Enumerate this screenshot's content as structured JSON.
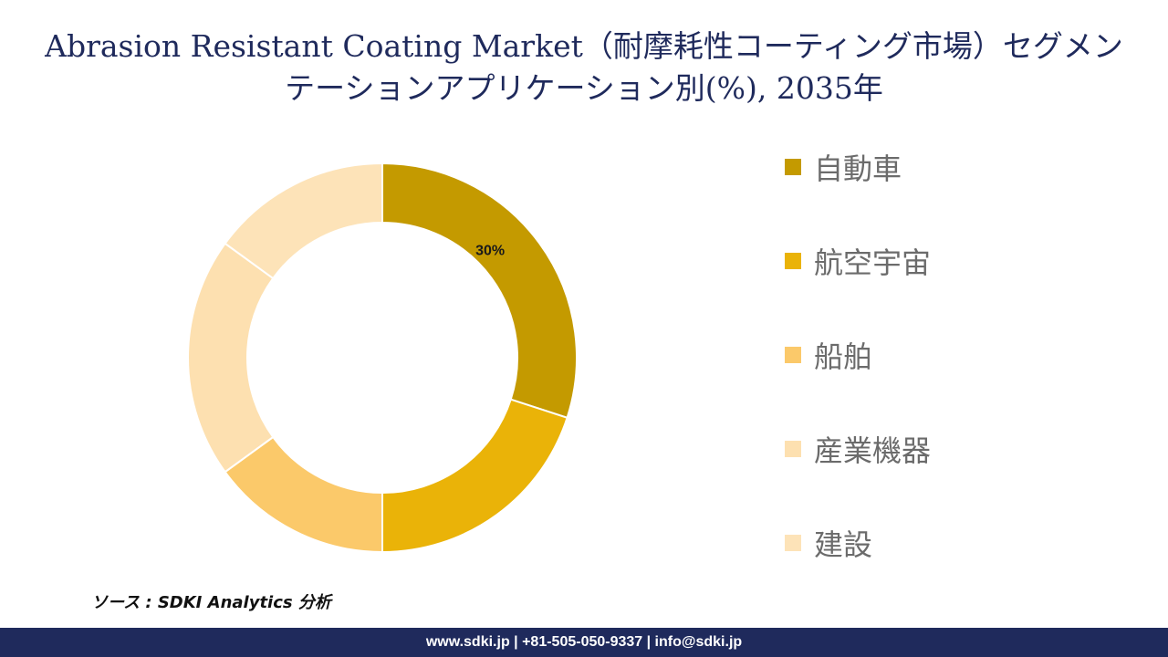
{
  "title": "Abrasion Resistant Coating Market（耐摩耗性コーティング市場）セグメンテーションアプリケーション別(%), 2035年",
  "source": "ソース : SDKI Analytics 分析",
  "footer": "www.sdki.jp | +81-505-050-9337 | info@sdki.jp",
  "chart_data": {
    "type": "pie",
    "subtype": "donut",
    "title": "Abrasion Resistant Coating Market（耐摩耗性コーティング市場）セグメンテーションアプリケーション別(%), 2035年",
    "categories": [
      "自動車",
      "航空宇宙",
      "船舶",
      "産業機器",
      "建設"
    ],
    "values": [
      30,
      20,
      15,
      20,
      15
    ],
    "colors": [
      "#c49a00",
      "#eab308",
      "#fbc96a",
      "#fde0b0",
      "#fde3b8"
    ],
    "data_labels": [
      "30%",
      "",
      "",
      "",
      ""
    ],
    "legend_position": "right"
  }
}
